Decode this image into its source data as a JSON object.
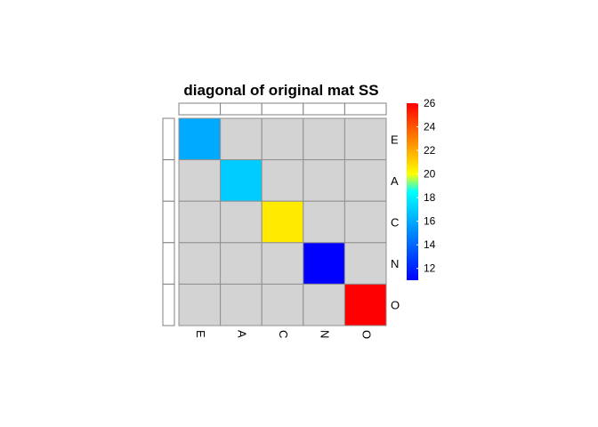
{
  "chart_data": {
    "type": "heatmap",
    "title": "diagonal of original mat SS",
    "row_labels": [
      "E",
      "A",
      "C",
      "N",
      "O"
    ],
    "col_labels": [
      "E",
      "A",
      "C",
      "N",
      "O"
    ],
    "values": [
      [
        16,
        null,
        null,
        null,
        null
      ],
      [
        null,
        17,
        null,
        null,
        null
      ],
      [
        null,
        null,
        20.5,
        null,
        null
      ],
      [
        null,
        null,
        null,
        11,
        null
      ],
      [
        null,
        null,
        null,
        null,
        26
      ]
    ],
    "na_color": "#D3D3D3",
    "legend": {
      "placement": "right",
      "min": 11,
      "max": 26,
      "ticks": [
        12,
        14,
        16,
        18,
        20,
        22,
        24,
        26
      ],
      "color_stops": [
        {
          "value": 11,
          "color": "#0000FF"
        },
        {
          "value": 18.5,
          "color": "#00FFFF"
        },
        {
          "value": 20,
          "color": "#FFFF00"
        },
        {
          "value": 26,
          "color": "#FF0000"
        }
      ]
    }
  }
}
